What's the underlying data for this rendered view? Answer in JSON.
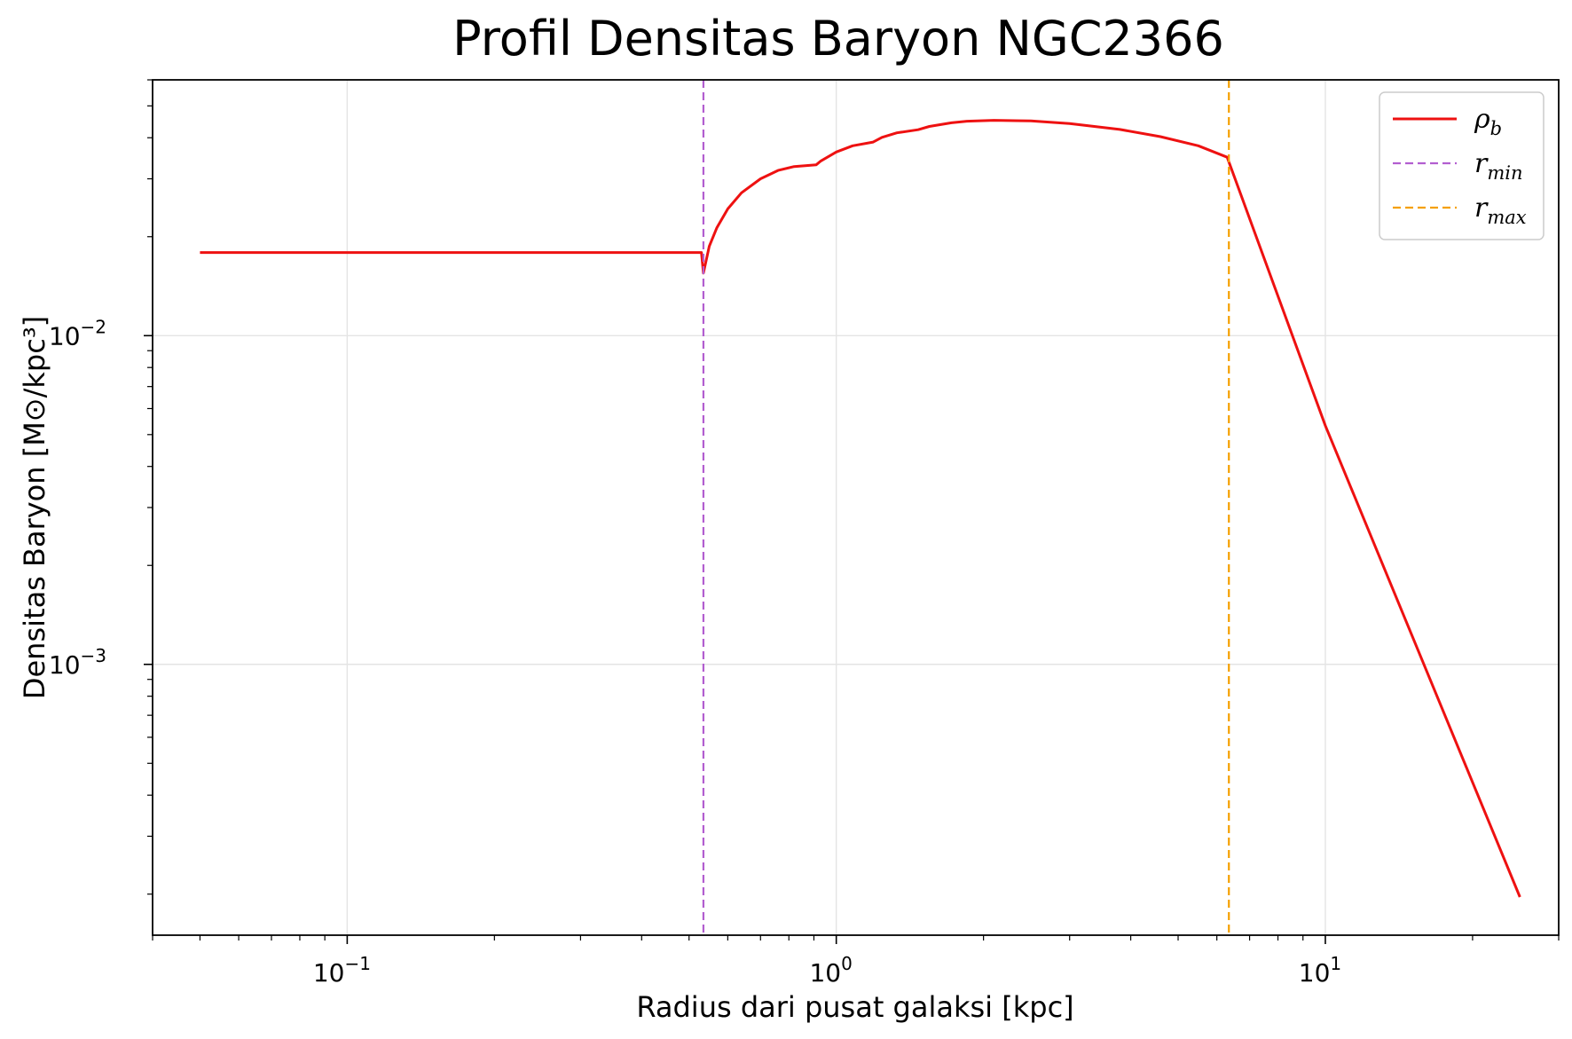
{
  "chart_data": {
    "type": "line",
    "title": "Profil Densitas Baryon NGC2366",
    "xlabel": "Radius dari pusat galaksi [kpc]",
    "ylabel": "Densitas Baryon [M⊙/kpc³]",
    "xscale": "log",
    "yscale": "log",
    "xlim": [
      0.04,
      30
    ],
    "ylim": [
      0.00015,
      0.06
    ],
    "grid": true,
    "legend_position": "upper right",
    "x_ticks": [
      {
        "value": 0.1,
        "label": "10",
        "exp": "−1"
      },
      {
        "value": 1,
        "label": "10",
        "exp": "0"
      },
      {
        "value": 10,
        "label": "10",
        "exp": "1"
      }
    ],
    "y_ticks": [
      {
        "value": 0.001,
        "label": "10",
        "exp": "−3"
      },
      {
        "value": 0.01,
        "label": "10",
        "exp": "−2"
      }
    ],
    "series": [
      {
        "name": "ρ_b",
        "legend_main": "ρ",
        "legend_sub": "b",
        "color": "#ee1111",
        "style": "solid",
        "points": [
          [
            0.05,
            0.0179
          ],
          [
            0.12,
            0.0179
          ],
          [
            0.3,
            0.0179
          ],
          [
            0.53,
            0.0179
          ],
          [
            0.535,
            0.0155
          ],
          [
            0.55,
            0.0187
          ],
          [
            0.57,
            0.0213
          ],
          [
            0.6,
            0.0243
          ],
          [
            0.64,
            0.0272
          ],
          [
            0.7,
            0.03
          ],
          [
            0.76,
            0.0318
          ],
          [
            0.82,
            0.0327
          ],
          [
            0.91,
            0.0331
          ],
          [
            0.93,
            0.034
          ],
          [
            1.0,
            0.0362
          ],
          [
            1.08,
            0.0378
          ],
          [
            1.19,
            0.0388
          ],
          [
            1.24,
            0.0401
          ],
          [
            1.33,
            0.0414
          ],
          [
            1.47,
            0.0423
          ],
          [
            1.55,
            0.0433
          ],
          [
            1.72,
            0.0444
          ],
          [
            1.85,
            0.0449
          ],
          [
            2.1,
            0.0452
          ],
          [
            2.5,
            0.045
          ],
          [
            3.0,
            0.0442
          ],
          [
            3.8,
            0.0424
          ],
          [
            4.6,
            0.0403
          ],
          [
            5.5,
            0.0378
          ],
          [
            6.3,
            0.0349
          ],
          [
            10.0,
            0.00532
          ],
          [
            25.0,
            0.000196
          ]
        ]
      },
      {
        "name": "r_min",
        "legend_main": "r",
        "legend_sub": "min",
        "color": "#b25ed0",
        "style": "dashed",
        "x": 0.535
      },
      {
        "name": "r_max",
        "legend_main": "r",
        "legend_sub": "max",
        "color": "#f5a000",
        "style": "dashed",
        "x": 6.35
      }
    ]
  }
}
